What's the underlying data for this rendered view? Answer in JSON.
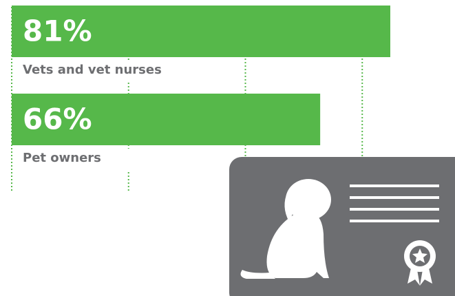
{
  "chart_data": {
    "type": "bar",
    "orientation": "horizontal",
    "categories": [
      "Vets and vet nurses",
      "Pet owners"
    ],
    "values": [
      81,
      66
    ],
    "value_labels": [
      "81%",
      "66%"
    ],
    "color": "#56b84a",
    "grid_color": "#56b84a",
    "xlim": [
      0,
      100
    ],
    "xticks": [
      0,
      25,
      50,
      75
    ],
    "grid": true
  }
}
